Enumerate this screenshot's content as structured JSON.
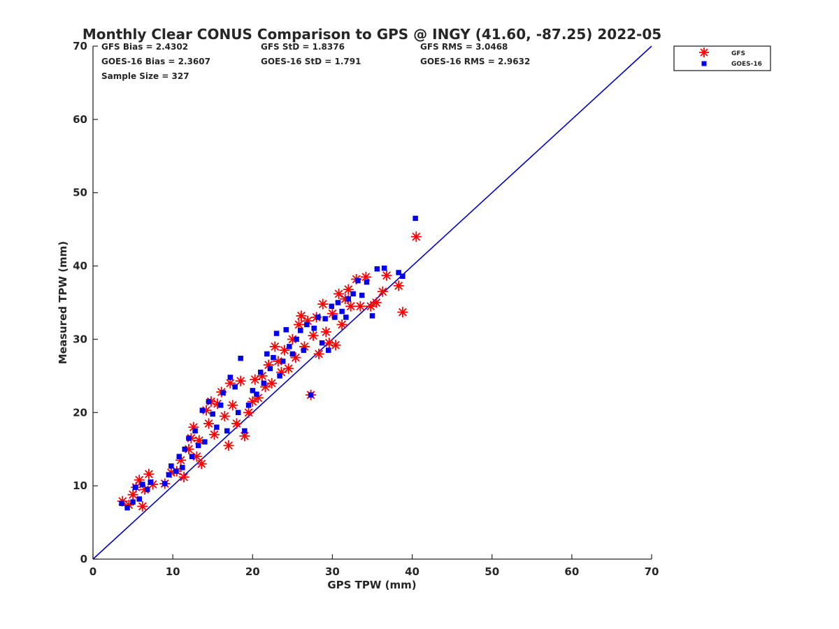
{
  "chart_data": {
    "type": "scatter",
    "title": "Monthly Clear CONUS Comparison to GPS @ INGY (41.60, -87.25) 2022-05",
    "xlabel": "GPS TPW (mm)",
    "ylabel": "Measured TPW (mm)",
    "xlim": [
      0,
      70
    ],
    "ylim": [
      0,
      70
    ],
    "xticks": [
      "0",
      "10",
      "20",
      "30",
      "40",
      "50",
      "60",
      "70"
    ],
    "yticks": [
      "0",
      "10",
      "20",
      "30",
      "40",
      "50",
      "60",
      "70"
    ],
    "grid": false,
    "legend_position": "top-right (outside axes)",
    "reference_line": {
      "name": "1:1 line",
      "color": "#0000cc",
      "x": [
        0,
        70
      ],
      "y": [
        0,
        70
      ]
    },
    "stats": {
      "gfs_bias": "GFS Bias = 2.4302",
      "gfs_std": "GFS StD = 1.8376",
      "gfs_rms": "GFS RMS = 3.0468",
      "goes_bias": "GOES-16 Bias = 2.3607",
      "goes_std": "GOES-16 StD = 1.791",
      "goes_rms": "GOES-16 RMS = 2.9632",
      "sample_size": "Sample Size = 327"
    },
    "series": [
      {
        "name": "GFS",
        "marker": "asterisk",
        "color": "#ff0000",
        "points": [
          [
            3.7,
            7.9
          ],
          [
            4.5,
            7.4
          ],
          [
            5.0,
            8.8
          ],
          [
            5.4,
            9.8
          ],
          [
            5.8,
            10.8
          ],
          [
            6.2,
            7.2
          ],
          [
            6.5,
            9.5
          ],
          [
            7.0,
            11.6
          ],
          [
            7.5,
            10.2
          ],
          [
            9.0,
            10.3
          ],
          [
            9.8,
            11.8
          ],
          [
            10.5,
            12.0
          ],
          [
            11.0,
            13.5
          ],
          [
            11.4,
            11.2
          ],
          [
            12.0,
            15.0
          ],
          [
            12.3,
            16.5
          ],
          [
            12.6,
            18.0
          ],
          [
            13.0,
            14.0
          ],
          [
            13.3,
            16.2
          ],
          [
            13.6,
            13.0
          ],
          [
            14.2,
            20.3
          ],
          [
            14.5,
            18.5
          ],
          [
            14.8,
            21.5
          ],
          [
            15.2,
            17.0
          ],
          [
            15.6,
            21.2
          ],
          [
            16.1,
            22.8
          ],
          [
            16.5,
            19.5
          ],
          [
            17.0,
            15.5
          ],
          [
            17.2,
            24.0
          ],
          [
            17.5,
            21.0
          ],
          [
            18.0,
            18.5
          ],
          [
            18.5,
            24.3
          ],
          [
            19.0,
            16.8
          ],
          [
            19.5,
            20.0
          ],
          [
            20.0,
            21.5
          ],
          [
            20.3,
            24.5
          ],
          [
            20.7,
            22.0
          ],
          [
            21.2,
            25.0
          ],
          [
            21.6,
            23.5
          ],
          [
            22.0,
            26.5
          ],
          [
            22.4,
            24.0
          ],
          [
            22.8,
            29.0
          ],
          [
            23.2,
            27.0
          ],
          [
            23.6,
            25.5
          ],
          [
            24.0,
            28.5
          ],
          [
            24.5,
            26.0
          ],
          [
            25.0,
            30.0
          ],
          [
            25.4,
            27.5
          ],
          [
            25.8,
            32.0
          ],
          [
            26.1,
            33.2
          ],
          [
            26.5,
            29.0
          ],
          [
            26.9,
            32.5
          ],
          [
            27.3,
            22.4
          ],
          [
            27.6,
            30.5
          ],
          [
            28.0,
            33.0
          ],
          [
            28.3,
            28.0
          ],
          [
            28.8,
            34.8
          ],
          [
            29.2,
            31.0
          ],
          [
            29.6,
            29.5
          ],
          [
            30.0,
            33.5
          ],
          [
            30.4,
            29.2
          ],
          [
            30.8,
            36.2
          ],
          [
            31.2,
            32.0
          ],
          [
            31.6,
            35.5
          ],
          [
            32.0,
            36.8
          ],
          [
            32.3,
            34.5
          ],
          [
            33.0,
            38.2
          ],
          [
            33.5,
            34.5
          ],
          [
            34.2,
            38.5
          ],
          [
            34.8,
            34.5
          ],
          [
            35.5,
            35.0
          ],
          [
            36.3,
            36.5
          ],
          [
            36.8,
            38.7
          ],
          [
            38.3,
            37.3
          ],
          [
            38.8,
            33.7
          ],
          [
            40.5,
            44.0
          ]
        ]
      },
      {
        "name": "GOES-16",
        "marker": "square",
        "color": "#0000ee",
        "points": [
          [
            3.6,
            7.6
          ],
          [
            4.3,
            7.0
          ],
          [
            5.0,
            7.8
          ],
          [
            5.3,
            9.8
          ],
          [
            5.8,
            8.2
          ],
          [
            6.2,
            10.2
          ],
          [
            6.8,
            9.5
          ],
          [
            7.2,
            10.5
          ],
          [
            9.0,
            10.3
          ],
          [
            9.5,
            11.5
          ],
          [
            9.8,
            12.7
          ],
          [
            10.4,
            12.0
          ],
          [
            10.8,
            14.0
          ],
          [
            11.2,
            12.5
          ],
          [
            11.5,
            15.0
          ],
          [
            12.0,
            16.5
          ],
          [
            12.4,
            14.0
          ],
          [
            12.8,
            17.5
          ],
          [
            13.2,
            15.5
          ],
          [
            13.7,
            20.3
          ],
          [
            14.0,
            16.0
          ],
          [
            14.5,
            21.5
          ],
          [
            15.0,
            19.8
          ],
          [
            15.5,
            18.0
          ],
          [
            16.0,
            21.0
          ],
          [
            16.3,
            22.7
          ],
          [
            16.8,
            17.5
          ],
          [
            17.2,
            24.8
          ],
          [
            17.8,
            23.5
          ],
          [
            18.2,
            20.0
          ],
          [
            18.5,
            27.4
          ],
          [
            19.0,
            17.5
          ],
          [
            19.5,
            21.0
          ],
          [
            20.0,
            23.0
          ],
          [
            20.5,
            22.5
          ],
          [
            21.0,
            25.5
          ],
          [
            21.4,
            24.0
          ],
          [
            21.8,
            28.0
          ],
          [
            22.2,
            26.0
          ],
          [
            22.6,
            27.5
          ],
          [
            23.0,
            30.8
          ],
          [
            23.4,
            25.0
          ],
          [
            23.8,
            27.0
          ],
          [
            24.2,
            31.3
          ],
          [
            24.6,
            29.0
          ],
          [
            25.0,
            28.0
          ],
          [
            25.5,
            30.0
          ],
          [
            26.0,
            31.2
          ],
          [
            26.4,
            28.5
          ],
          [
            26.8,
            32.0
          ],
          [
            27.3,
            22.4
          ],
          [
            27.7,
            31.5
          ],
          [
            28.2,
            33.0
          ],
          [
            28.7,
            29.5
          ],
          [
            29.1,
            32.8
          ],
          [
            29.5,
            28.5
          ],
          [
            29.9,
            34.5
          ],
          [
            30.3,
            33.0
          ],
          [
            30.7,
            35.0
          ],
          [
            31.2,
            33.8
          ],
          [
            31.7,
            33.0
          ],
          [
            32.0,
            35.5
          ],
          [
            32.6,
            36.2
          ],
          [
            33.2,
            38.0
          ],
          [
            33.7,
            36.0
          ],
          [
            34.3,
            37.8
          ],
          [
            35.0,
            33.2
          ],
          [
            35.6,
            39.6
          ],
          [
            36.5,
            39.7
          ],
          [
            38.3,
            39.1
          ],
          [
            38.8,
            38.6
          ],
          [
            40.4,
            46.5
          ]
        ]
      }
    ]
  }
}
